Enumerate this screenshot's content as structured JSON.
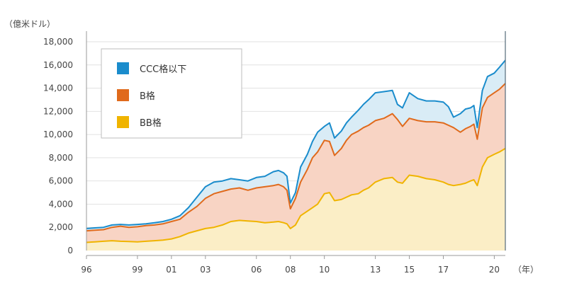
{
  "chart_data": {
    "type": "area",
    "title": "",
    "ylabel": "（億米ドル）",
    "xlabel": "（年）",
    "ylim": [
      0,
      18000
    ],
    "xlim": [
      1996.0,
      2020.65
    ],
    "y_ticks": [
      0,
      2000,
      4000,
      6000,
      8000,
      10000,
      12000,
      14000,
      16000,
      18000
    ],
    "y_tick_labels": [
      "0",
      "2,000",
      "4,000",
      "6,000",
      "8,000",
      "10,000",
      "12,000",
      "14,000",
      "16,000",
      "18,000"
    ],
    "x_ticks": [
      1996,
      1999,
      2001,
      2003,
      2006,
      2008,
      2010,
      2013,
      2015,
      2017,
      2020
    ],
    "x_tick_labels": [
      "96",
      "99",
      "01",
      "03",
      "06",
      "08",
      "10",
      "13",
      "15",
      "17",
      "20"
    ],
    "grid": "horizontal",
    "stacked": true,
    "legend_position": "top-left",
    "colors": {
      "ccc": "#1a8ccc",
      "b": "#e06a1c",
      "bb": "#f0b400",
      "ccc_fill": "#d9ecf6",
      "b_fill": "#f8d4c4",
      "bb_fill": "#fbeec6"
    },
    "legend": [
      {
        "key": "ccc",
        "label": "CCC格以下",
        "color": "#1a8ccc"
      },
      {
        "key": "b",
        "label": "B格",
        "color": "#e06a1c"
      },
      {
        "key": "bb",
        "label": "BB格",
        "color": "#f0b400"
      }
    ],
    "x": [
      1996.0,
      1996.5,
      1997.0,
      1997.5,
      1998.0,
      1998.5,
      1999.0,
      1999.5,
      2000.0,
      2000.5,
      2001.0,
      2001.5,
      2002.0,
      2002.5,
      2003.0,
      2003.5,
      2004.0,
      2004.5,
      2005.0,
      2005.5,
      2006.0,
      2006.5,
      2007.0,
      2007.3,
      2007.6,
      2007.8,
      2008.0,
      2008.3,
      2008.6,
      2009.0,
      2009.3,
      2009.6,
      2010.0,
      2010.3,
      2010.6,
      2011.0,
      2011.3,
      2011.6,
      2012.0,
      2012.3,
      2012.6,
      2013.0,
      2013.5,
      2014.0,
      2014.3,
      2014.6,
      2015.0,
      2015.5,
      2016.0,
      2016.5,
      2017.0,
      2017.3,
      2017.6,
      2018.0,
      2018.3,
      2018.6,
      2018.8,
      2019.0,
      2019.3,
      2019.6,
      2020.0,
      2020.3,
      2020.65
    ],
    "series": [
      {
        "name": "BB格",
        "key": "bb",
        "values": [
          700,
          750,
          800,
          850,
          800,
          780,
          750,
          800,
          850,
          900,
          1000,
          1200,
          1500,
          1700,
          1900,
          2000,
          2200,
          2500,
          2600,
          2550,
          2500,
          2400,
          2450,
          2500,
          2400,
          2300,
          1900,
          2200,
          3000,
          3400,
          3700,
          4000,
          4900,
          5000,
          4300,
          4400,
          4600,
          4800,
          4900,
          5200,
          5400,
          5900,
          6200,
          6300,
          5900,
          5800,
          6500,
          6400,
          6200,
          6100,
          5900,
          5700,
          5600,
          5700,
          5800,
          6000,
          6100,
          5600,
          7200,
          8000,
          8300,
          8500,
          8800
        ]
      },
      {
        "name": "B格",
        "key": "b",
        "values": [
          1700,
          1750,
          1800,
          2000,
          2100,
          2000,
          2050,
          2150,
          2200,
          2300,
          2500,
          2700,
          3300,
          3800,
          4500,
          4900,
          5100,
          5300,
          5400,
          5200,
          5400,
          5500,
          5600,
          5700,
          5500,
          5200,
          3600,
          4500,
          5900,
          7000,
          8000,
          8500,
          9500,
          9400,
          8200,
          8800,
          9500,
          10000,
          10300,
          10600,
          10800,
          11200,
          11400,
          11800,
          11300,
          10700,
          11400,
          11200,
          11100,
          11100,
          11000,
          10800,
          10600,
          10200,
          10500,
          10700,
          10900,
          9600,
          12300,
          13200,
          13600,
          13900,
          14400
        ]
      },
      {
        "name": "CCC格以下",
        "key": "ccc",
        "values": [
          1900,
          1950,
          2000,
          2200,
          2250,
          2200,
          2250,
          2300,
          2400,
          2500,
          2700,
          3000,
          3700,
          4600,
          5500,
          5900,
          6000,
          6200,
          6100,
          6000,
          6300,
          6400,
          6800,
          6900,
          6700,
          6400,
          4100,
          5000,
          7200,
          8300,
          9400,
          10200,
          10700,
          11000,
          9700,
          10300,
          11000,
          11500,
          12100,
          12600,
          13000,
          13600,
          13700,
          13800,
          12600,
          12300,
          13600,
          13100,
          12900,
          12900,
          12800,
          12400,
          11500,
          11800,
          12200,
          12300,
          12500,
          10600,
          13800,
          15000,
          15300,
          15800,
          16400
        ]
      }
    ]
  }
}
